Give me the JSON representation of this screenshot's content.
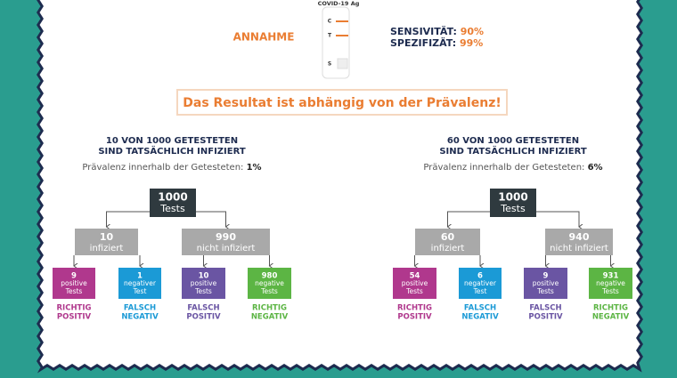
{
  "header": {
    "assumption": "ANNAHME",
    "test_label": "COVID-19 Ag",
    "marks": [
      "C",
      "T",
      "S"
    ],
    "sensitivity_label": "SENSIVITÄT:",
    "sensitivity_value": "90%",
    "specificity_label": "SPEZIFIZÄT:",
    "specificity_value": "99%"
  },
  "banner": "Das Resultat ist abhängig von der Prävalenz!",
  "trees": [
    {
      "title": [
        "10 VON 1000 GETESTETEN",
        "SIND TATSÄCHLICH INFIZIERT"
      ],
      "prevalence_label": "Prävalenz innerhalb der Getesteten:",
      "prevalence_value": "1%",
      "root": {
        "number": "1000",
        "text": "Tests"
      },
      "groups": [
        {
          "number": "10",
          "text": "infiziert"
        },
        {
          "number": "990",
          "text": "nicht infiziert"
        }
      ],
      "leaves": [
        {
          "number": "9",
          "text": [
            "positive",
            "Tests"
          ],
          "category": [
            "RICHTIG",
            "POSITIV"
          ]
        },
        {
          "number": "1",
          "text": [
            "negativer",
            "Test"
          ],
          "category": [
            "FALSCH",
            "NEGATIV"
          ]
        },
        {
          "number": "10",
          "text": [
            "positive",
            "Tests"
          ],
          "category": [
            "FALSCH",
            "POSITIV"
          ]
        },
        {
          "number": "980",
          "text": [
            "negative",
            "Tests"
          ],
          "category": [
            "RICHTIG",
            "NEGATIV"
          ]
        }
      ]
    },
    {
      "title": [
        "60 VON 1000 GETESTETEN",
        "SIND TATSÄCHLICH INFIZIERT"
      ],
      "prevalence_label": "Prävalenz innerhalb der Getesteten:",
      "prevalence_value": "6%",
      "root": {
        "number": "1000",
        "text": "Tests"
      },
      "groups": [
        {
          "number": "60",
          "text": "infiziert"
        },
        {
          "number": "940",
          "text": "nicht infiziert"
        }
      ],
      "leaves": [
        {
          "number": "54",
          "text": [
            "positive",
            "Tests"
          ],
          "category": [
            "RICHTIG",
            "POSITIV"
          ]
        },
        {
          "number": "6",
          "text": [
            "negativer",
            "Test"
          ],
          "category": [
            "FALSCH",
            "NEGATIV"
          ]
        },
        {
          "number": "9",
          "text": [
            "positive",
            "Tests"
          ],
          "category": [
            "FALSCH",
            "POSITIV"
          ]
        },
        {
          "number": "931",
          "text": [
            "negative",
            "Tests"
          ],
          "category": [
            "RICHTIG",
            "NEGATIV"
          ]
        }
      ]
    }
  ]
}
